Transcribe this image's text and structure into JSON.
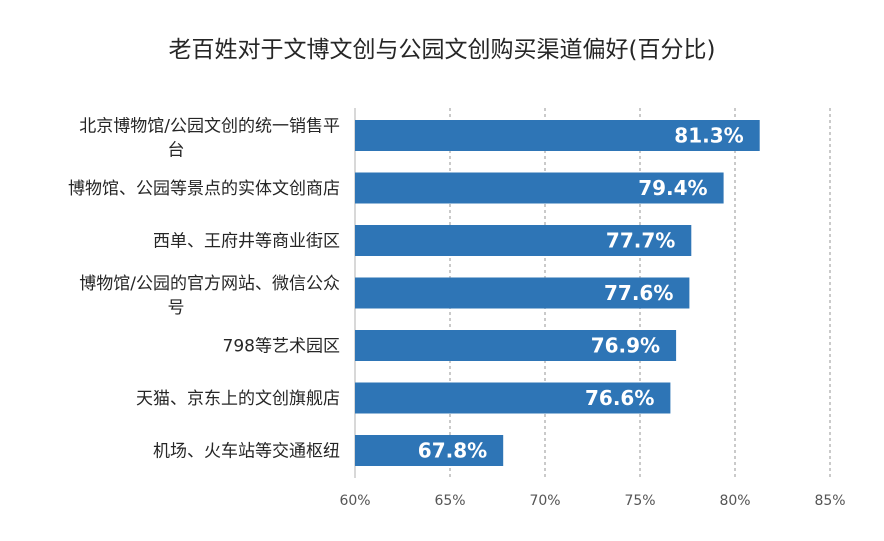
{
  "chart_data": {
    "type": "bar",
    "orientation": "horizontal",
    "title": "老百姓对于文博文创与公园文创购买渠道偏好(百分比)",
    "categories": [
      [
        "北京博物馆/公园文创的统一销售平",
        "台"
      ],
      [
        "博物馆、公园等景点的实体文创商店"
      ],
      [
        "西单、王府井等商业街区"
      ],
      [
        "博物馆/公园的官方网站、微信公众",
        "号"
      ],
      [
        "798等艺术园区"
      ],
      [
        "天猫、京东上的文创旗舰店"
      ],
      [
        "机场、火车站等交通枢纽"
      ]
    ],
    "values": [
      81.3,
      79.4,
      77.7,
      77.6,
      76.9,
      76.6,
      67.8
    ],
    "value_labels": [
      "81.3%",
      "79.4%",
      "77.7%",
      "77.6%",
      "76.9%",
      "76.6%",
      "67.8%"
    ],
    "xlim": [
      60,
      85
    ],
    "x_ticks": [
      60,
      65,
      70,
      75,
      80,
      85
    ],
    "x_tick_labels": [
      "60%",
      "65%",
      "70%",
      "75%",
      "80%",
      "85%"
    ],
    "grid": "vertical dashed",
    "legend": "none",
    "bar_color": "#2e75b6"
  }
}
